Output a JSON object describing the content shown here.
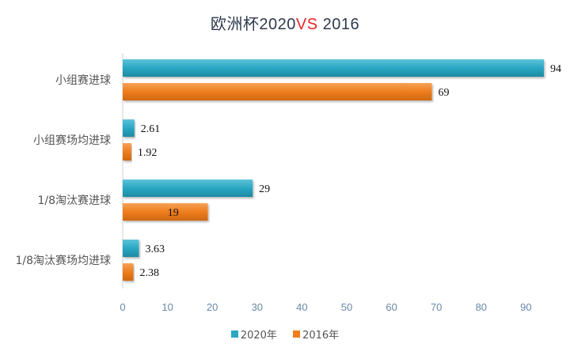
{
  "title": {
    "main": "欧洲杯2020",
    "vs": "VS",
    "rest": "2016"
  },
  "colors": {
    "series_2020": "#2aa7c3",
    "series_2016": "#ee7d1e",
    "vs_text": "#e8262b"
  },
  "chart_data": {
    "type": "bar",
    "orientation": "horizontal",
    "categories": [
      "小组赛进球",
      "小组赛场均进球",
      "1/8淘汰赛进球",
      "1/8淘汰赛场均进球"
    ],
    "series": [
      {
        "name": "2020年",
        "values": [
          94,
          2.61,
          29,
          3.63
        ]
      },
      {
        "name": "2016年",
        "values": [
          69,
          1.92,
          19,
          2.38
        ]
      }
    ],
    "xlim": [
      0,
      95
    ],
    "xticks": [
      0,
      10,
      20,
      30,
      40,
      50,
      60,
      70,
      80,
      90
    ],
    "data_labels": [
      [
        "94",
        "2.61",
        "29",
        "3.63"
      ],
      [
        "69",
        "1.92",
        "19",
        "2.38"
      ]
    ],
    "legend_position": "bottom",
    "grid": false
  }
}
